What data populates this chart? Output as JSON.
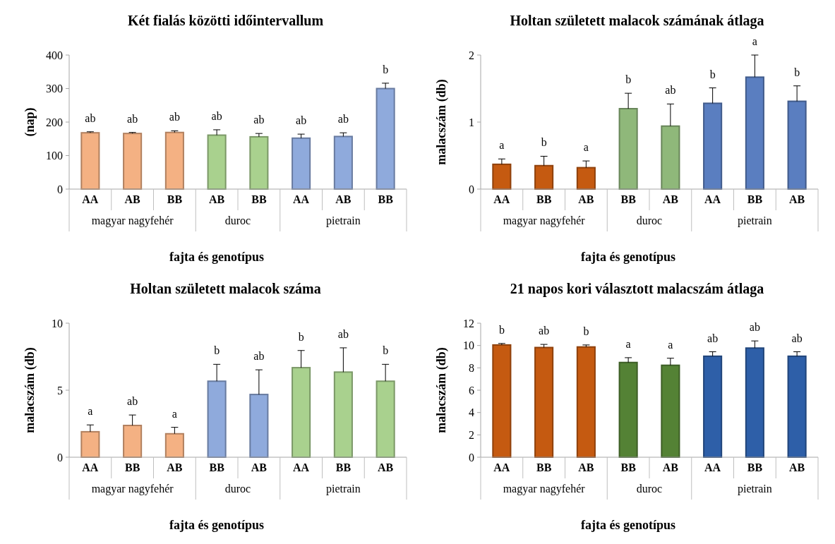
{
  "chart_data": [
    {
      "type": "bar",
      "title": "Két fialás közötti időintervallum",
      "xlabel": "fajta és genotípus",
      "ylabel": "(nap)",
      "categories": [
        "AA",
        "AB",
        "BB",
        "AB",
        "BB",
        "AA",
        "AB",
        "BB"
      ],
      "values": [
        168,
        166,
        169,
        161,
        156,
        152,
        157,
        300
      ],
      "errors": [
        [
          168,
          171
        ],
        [
          166,
          169
        ],
        [
          169,
          174
        ],
        [
          161,
          177
        ],
        [
          156,
          166
        ],
        [
          152,
          164
        ],
        [
          157,
          168
        ],
        [
          300,
          316
        ]
      ],
      "value_labels": [
        "ab",
        "ab",
        "ab",
        "ab",
        "ab",
        "ab",
        "ab",
        "b"
      ],
      "colors": [
        "#f4b183",
        "#f4b183",
        "#f4b183",
        "#a9d18e",
        "#a9d18e",
        "#8faadc",
        "#8faadc",
        "#8faadc"
      ],
      "annotations": [
        "magyar nagyfehér",
        "duroc",
        "pietrain"
      ],
      "ylim": [
        0,
        400
      ],
      "yticks": [
        0,
        100,
        200,
        300,
        400
      ]
    },
    {
      "type": "bar",
      "title": "Holtan született malacok számának átlaga",
      "xlabel": "fajta és genotípus",
      "ylabel": "malacszám (db)",
      "categories": [
        "AA",
        "BB",
        "AB",
        "BB",
        "AB",
        "AA",
        "BB",
        "AB"
      ],
      "values": [
        0.37,
        0.35,
        0.32,
        1.2,
        0.94,
        1.28,
        1.67,
        1.31
      ],
      "errors": [
        [
          0.37,
          0.45
        ],
        [
          0.35,
          0.49
        ],
        [
          0.32,
          0.42
        ],
        [
          1.2,
          1.43
        ],
        [
          0.94,
          1.27
        ],
        [
          1.28,
          1.51
        ],
        [
          1.67,
          2.0
        ],
        [
          1.31,
          1.54
        ]
      ],
      "value_labels": [
        "a",
        "b",
        "a",
        "b",
        "ab",
        "b",
        "a",
        "b"
      ],
      "colors": [
        "#c55a11",
        "#c55a11",
        "#c55a11",
        "#8fb87a",
        "#8fb87a",
        "#5a7ec0",
        "#5a7ec0",
        "#5a7ec0"
      ],
      "annotations": [
        "magyar nagyfehér",
        "duroc",
        "pietrain"
      ],
      "ylim": [
        0,
        2
      ],
      "yticks": [
        0,
        1,
        2
      ]
    },
    {
      "type": "bar",
      "title": "Holtan született malacok száma",
      "xlabel": "fajta és genotípus",
      "ylabel": "malacszám (db)",
      "categories": [
        "AA",
        "BB",
        "AB",
        "BB",
        "AB",
        "AA",
        "BB",
        "AB"
      ],
      "values": [
        1.9,
        2.37,
        1.75,
        5.67,
        4.68,
        6.68,
        6.35,
        5.67
      ],
      "errors": [
        [
          1.9,
          2.41
        ],
        [
          2.37,
          3.15
        ],
        [
          1.75,
          2.23
        ],
        [
          5.67,
          6.93
        ],
        [
          4.68,
          6.52
        ],
        [
          6.68,
          7.96
        ],
        [
          6.35,
          8.16
        ],
        [
          5.67,
          6.93
        ]
      ],
      "value_labels": [
        "a",
        "ab",
        "a",
        "b",
        "ab",
        "b",
        "ab",
        "b"
      ],
      "colors": [
        "#f4b183",
        "#f4b183",
        "#f4b183",
        "#8faadc",
        "#8faadc",
        "#a9d18e",
        "#a9d18e",
        "#a9d18e"
      ],
      "annotations": [
        "magyar nagyfehér",
        "duroc",
        "pietrain"
      ],
      "ylim": [
        0,
        10
      ],
      "yticks": [
        0,
        5,
        10
      ]
    },
    {
      "type": "bar",
      "title": "21 napos kori választott malacszám átlaga",
      "xlabel": "fajta és genotípus",
      "ylabel": "malacszám (db)",
      "categories": [
        "AA",
        "BB",
        "AB",
        "BB",
        "AB",
        "AA",
        "BB",
        "AB"
      ],
      "values": [
        10.05,
        9.82,
        9.87,
        8.48,
        8.23,
        9.04,
        9.77,
        9.04
      ],
      "errors": [
        [
          10.05,
          10.18
        ],
        [
          9.82,
          10.1
        ],
        [
          9.87,
          10.05
        ],
        [
          8.48,
          8.91
        ],
        [
          8.23,
          8.86
        ],
        [
          9.04,
          9.44
        ],
        [
          9.77,
          10.41
        ],
        [
          9.04,
          9.44
        ]
      ],
      "value_labels": [
        "b",
        "ab",
        "b",
        "a",
        "a",
        "ab",
        "ab",
        "ab"
      ],
      "colors": [
        "#c55a11",
        "#c55a11",
        "#c55a11",
        "#548235",
        "#548235",
        "#2e5fa8",
        "#2e5fa8",
        "#2e5fa8"
      ],
      "annotations": [
        "magyar nagyfehér",
        "duroc",
        "pietrain"
      ],
      "ylim": [
        0,
        12
      ],
      "yticks": [
        0,
        2,
        4,
        6,
        8,
        10,
        12
      ]
    }
  ]
}
